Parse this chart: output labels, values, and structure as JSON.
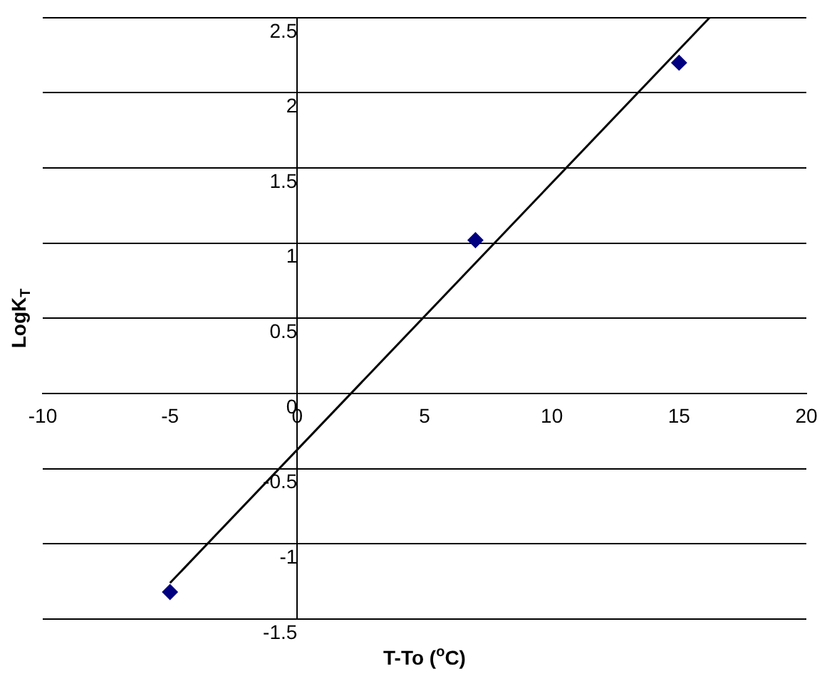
{
  "chart_data": {
    "type": "scatter",
    "xlabel": "T-To ($^{o}$C)",
    "ylabel": "LogK$_{T}$",
    "xlim": [
      -10,
      20
    ],
    "ylim": [
      -1.5,
      2.5
    ],
    "xticks": [
      -10,
      -5,
      0,
      5,
      10,
      15,
      20
    ],
    "yticks": [
      -1.5,
      -1,
      -0.5,
      0,
      0.5,
      1,
      1.5,
      2,
      2.5
    ],
    "grid": "y",
    "legend": false,
    "marker": "diamond",
    "series": [
      {
        "color": "#000080",
        "x": [
          -5,
          7,
          15
        ],
        "values": [
          -1.32,
          1.02,
          2.2
        ]
      },
      {
        "type": "line",
        "color": "#000000",
        "marker": "none",
        "x": [
          -5,
          16.2
        ],
        "values": [
          -1.26,
          2.5
        ]
      }
    ]
  }
}
